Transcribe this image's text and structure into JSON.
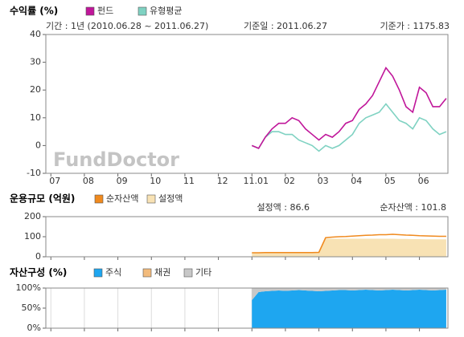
{
  "chart_data": [
    {
      "type": "line",
      "title": "수익률 (%)",
      "annotations": [
        "기간 : 1년 (2010.06.28 ~ 2011.06.27)",
        "기준일 : 2011.06.27",
        "기준가 : 1175.83"
      ],
      "watermark": "FundDoctor",
      "x": [
        6.0,
        6.2,
        6.4,
        6.6,
        6.8,
        7.0,
        7.2,
        7.4,
        7.6,
        7.8,
        8.0,
        8.2,
        8.4,
        8.6,
        8.8,
        9.0,
        9.2,
        9.4,
        9.6,
        9.8,
        10.0,
        10.2,
        10.4,
        10.6,
        10.8,
        11.0,
        11.2,
        11.4,
        11.6,
        11.8
      ],
      "series": [
        {
          "name": "펀드",
          "color": "#c0169a",
          "values": [
            0,
            -1,
            3,
            6,
            8,
            8,
            10,
            9,
            6,
            4,
            2,
            4,
            3,
            5,
            8,
            9,
            13,
            15,
            18,
            23,
            28,
            25,
            20,
            14,
            12,
            21,
            19,
            14,
            14,
            17
          ]
        },
        {
          "name": "유형평균",
          "color": "#7fd2c2",
          "values": [
            0,
            -1,
            3,
            5,
            5,
            4,
            4,
            2,
            1,
            0,
            -2,
            0,
            -1,
            0,
            2,
            4,
            8,
            10,
            11,
            12,
            15,
            12,
            9,
            8,
            6,
            10,
            9,
            6,
            4,
            5
          ]
        }
      ],
      "xlim": [
        -0.15,
        11.85
      ],
      "xticks": [
        {
          "value": 0,
          "label": "07"
        },
        {
          "value": 1,
          "label": "08"
        },
        {
          "value": 2,
          "label": "09"
        },
        {
          "value": 3,
          "label": "10"
        },
        {
          "value": 4,
          "label": "11"
        },
        {
          "value": 5,
          "label": "12"
        },
        {
          "value": 6,
          "label": "11.01"
        },
        {
          "value": 7,
          "label": "02"
        },
        {
          "value": 8,
          "label": "03"
        },
        {
          "value": 9,
          "label": "04"
        },
        {
          "value": 10,
          "label": "05"
        },
        {
          "value": 11,
          "label": "06"
        }
      ],
      "ylim": [
        -10,
        40
      ],
      "yticks": [
        -10,
        0,
        10,
        20,
        30,
        40
      ]
    },
    {
      "type": "area",
      "title": "운용규모 (억원)",
      "annotations": [
        "설정액 : 86.6",
        "순자산액 : 101.8"
      ],
      "x": [
        6.0,
        6.2,
        6.4,
        6.6,
        6.8,
        7.0,
        7.2,
        7.4,
        7.6,
        7.8,
        8.0,
        8.2,
        8.4,
        8.6,
        8.8,
        9.0,
        9.2,
        9.4,
        9.6,
        9.8,
        10.0,
        10.2,
        10.4,
        10.6,
        10.8,
        11.0,
        11.2,
        11.4,
        11.6,
        11.8
      ],
      "series": [
        {
          "name": "순자산액",
          "color": "#f08a1e",
          "style": "line",
          "values": [
            20,
            20,
            21,
            21,
            21,
            21,
            21,
            21,
            21,
            21,
            22,
            95,
            98,
            100,
            101,
            103,
            105,
            107,
            108,
            110,
            110,
            112,
            110,
            108,
            107,
            105,
            104,
            103,
            102,
            102
          ]
        },
        {
          "name": "설정액",
          "color": "#f8e2b4",
          "style": "area",
          "values": [
            19,
            19,
            20,
            20,
            20,
            20,
            20,
            20,
            20,
            20,
            20,
            90,
            90,
            90,
            90,
            90,
            90,
            90,
            90,
            90,
            90,
            90,
            89,
            89,
            88,
            88,
            87,
            87,
            87,
            87
          ]
        }
      ],
      "xlim": [
        -0.15,
        11.85
      ],
      "xticks": [
        0,
        1,
        2,
        3,
        4,
        5,
        6,
        7,
        8,
        9,
        10,
        11
      ],
      "ylim": [
        0,
        200
      ],
      "yticks": [
        0,
        100,
        200
      ]
    },
    {
      "type": "stacked-area",
      "title": "자산구성 (%)",
      "x": [
        6.0,
        6.2,
        6.4,
        6.6,
        6.8,
        7.0,
        7.2,
        7.4,
        7.6,
        7.8,
        8.0,
        8.2,
        8.4,
        8.6,
        8.8,
        9.0,
        9.2,
        9.4,
        9.6,
        9.8,
        10.0,
        10.2,
        10.4,
        10.6,
        10.8,
        11.0,
        11.2,
        11.4,
        11.6,
        11.8
      ],
      "series": [
        {
          "name": "주식",
          "color": "#1ea6f0",
          "values": [
            70,
            90,
            92,
            93,
            94,
            93,
            94,
            95,
            94,
            93,
            92,
            93,
            94,
            95,
            95,
            94,
            95,
            96,
            95,
            94,
            95,
            96,
            95,
            94,
            95,
            96,
            95,
            94,
            95,
            96
          ]
        },
        {
          "name": "채권",
          "color": "#f2bb7c",
          "values": [
            0,
            0,
            0,
            0,
            0,
            0,
            0,
            0,
            0,
            0,
            0,
            0,
            0,
            0,
            0,
            0,
            0,
            0,
            0,
            0,
            0,
            0,
            0,
            0,
            0,
            0,
            0,
            0,
            0,
            0
          ]
        },
        {
          "name": "기타",
          "color": "#c8c8c8",
          "values": [
            30,
            10,
            8,
            7,
            6,
            7,
            6,
            5,
            6,
            7,
            8,
            7,
            6,
            5,
            5,
            6,
            5,
            4,
            5,
            6,
            5,
            4,
            5,
            6,
            5,
            4,
            5,
            6,
            5,
            4
          ]
        }
      ],
      "xlim": [
        -0.15,
        11.85
      ],
      "xticks": [
        0,
        1,
        2,
        3,
        4,
        5,
        6,
        7,
        8,
        9,
        10,
        11
      ],
      "grid": "x",
      "ylim": [
        0,
        100
      ],
      "yticks": [
        {
          "value": 0,
          "label": "0%"
        },
        {
          "value": 50,
          "label": "50%"
        },
        {
          "value": 100,
          "label": "100%"
        }
      ]
    }
  ]
}
